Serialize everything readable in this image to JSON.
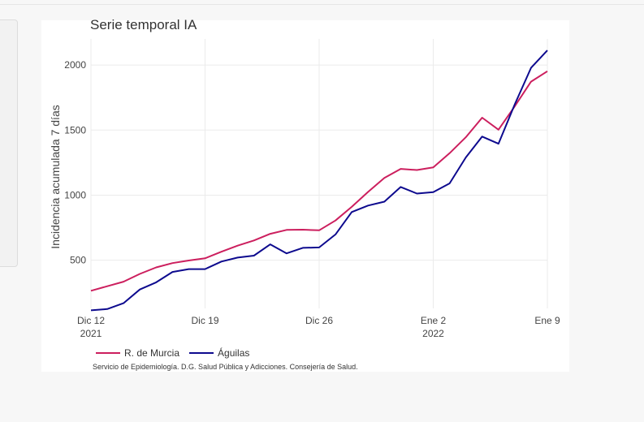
{
  "chart_data": {
    "type": "line",
    "title": "Serie temporal IA",
    "ylabel": "Incidencia acumulada 7 días",
    "xlabel": "",
    "ylim": [
      130,
      2200
    ],
    "yticks": [
      500,
      1000,
      1500,
      2000
    ],
    "x": [
      "2021-12-12",
      "2021-12-13",
      "2021-12-14",
      "2021-12-15",
      "2021-12-16",
      "2021-12-17",
      "2021-12-18",
      "2021-12-19",
      "2021-12-20",
      "2021-12-21",
      "2021-12-22",
      "2021-12-23",
      "2021-12-24",
      "2021-12-25",
      "2021-12-26",
      "2021-12-27",
      "2021-12-28",
      "2021-12-29",
      "2021-12-30",
      "2021-12-31",
      "2022-01-01",
      "2022-01-02",
      "2022-01-03",
      "2022-01-04",
      "2022-01-05",
      "2022-01-06",
      "2022-01-07",
      "2022-01-08",
      "2022-01-09"
    ],
    "xticks": [
      {
        "line1": "Dic 12",
        "line2": "2021",
        "index": 0
      },
      {
        "line1": "Dic 19",
        "line2": "",
        "index": 7
      },
      {
        "line1": "Dic 26",
        "line2": "",
        "index": 14
      },
      {
        "line1": "Ene 2",
        "line2": "2022",
        "index": 21
      },
      {
        "line1": "Ene 9",
        "line2": "",
        "index": 28
      }
    ],
    "series": [
      {
        "name": "R. de Murcia",
        "color": "#cc1f5e",
        "values": [
          265,
          300,
          335,
          395,
          445,
          478,
          498,
          515,
          565,
          612,
          652,
          703,
          733,
          735,
          730,
          805,
          910,
          1025,
          1132,
          1202,
          1193,
          1213,
          1322,
          1445,
          1595,
          1503,
          1683,
          1872,
          1952
        ]
      },
      {
        "name": "Águilas",
        "color": "#0d0a8e",
        "values": [
          115,
          125,
          170,
          275,
          330,
          410,
          432,
          432,
          490,
          520,
          535,
          622,
          553,
          595,
          598,
          698,
          870,
          920,
          950,
          1063,
          1012,
          1023,
          1090,
          1290,
          1450,
          1395,
          1698,
          1978,
          2112
        ]
      }
    ],
    "grid": true,
    "legend_position": "bottom-left"
  },
  "footer": {
    "source": "Servicio de Epidemiología. D.G. Salud Pública y Adicciones. Consejería de Salud."
  }
}
